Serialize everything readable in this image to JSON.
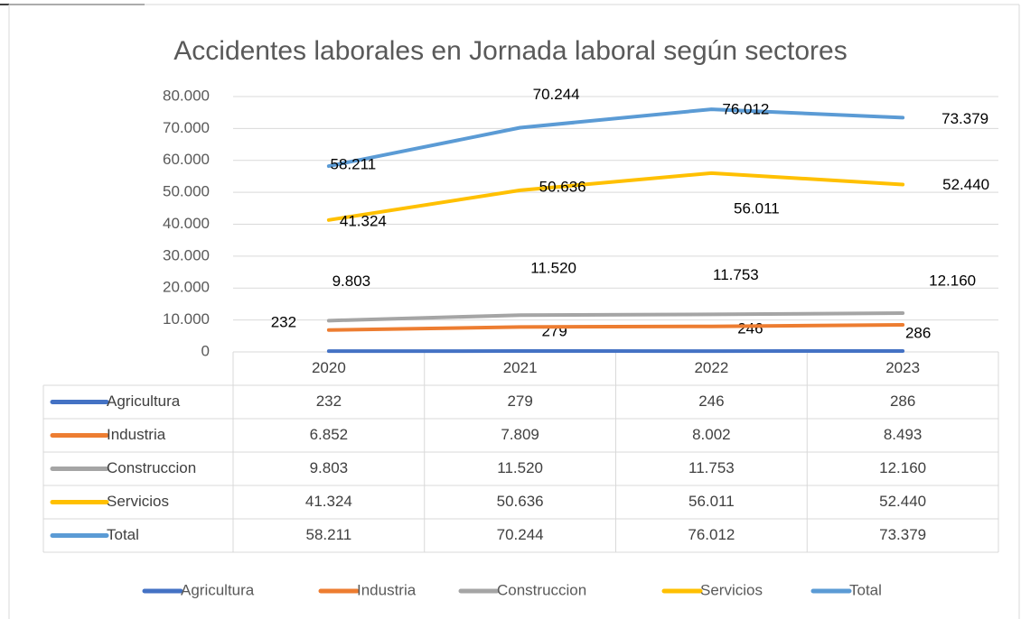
{
  "chart_data": {
    "type": "line",
    "title": "Accidentes laborales en Jornada laboral según sectores",
    "categories": [
      "2020",
      "2021",
      "2022",
      "2023"
    ],
    "series": [
      {
        "name": "Agricultura",
        "color": "#4472c4",
        "values": [
          232,
          279,
          246,
          286
        ],
        "value_labels": [
          "232",
          "279",
          "246",
          "286"
        ],
        "data_labels": true
      },
      {
        "name": "Industria",
        "color": "#ed7d31",
        "values": [
          6852,
          7809,
          8002,
          8493
        ],
        "value_labels": [
          "6.852",
          "7.809",
          "8.002",
          "8.493"
        ],
        "data_labels": false
      },
      {
        "name": "Construccion",
        "color": "#a5a5a5",
        "values": [
          9803,
          11520,
          11753,
          12160
        ],
        "value_labels": [
          "9.803",
          "11.520",
          "11.753",
          "12.160"
        ],
        "data_labels": true
      },
      {
        "name": "Servicios",
        "color": "#ffc000",
        "values": [
          41324,
          50636,
          56011,
          52440
        ],
        "value_labels": [
          "41.324",
          "50.636",
          "56.011",
          "52.440"
        ],
        "data_labels": true
      },
      {
        "name": "Total",
        "color": "#5b9bd5",
        "values": [
          58211,
          70244,
          76012,
          73379
        ],
        "value_labels": [
          "58.211",
          "70.244",
          "76.012",
          "73.379"
        ],
        "data_labels": true
      }
    ],
    "ylim": [
      0,
      80000
    ],
    "yticks": [
      0,
      {
        "value": 10000,
        "label": "10.000"
      },
      {
        "value": 20000,
        "label": "20.000"
      },
      {
        "value": 30000,
        "label": "30.000"
      },
      {
        "value": 40000,
        "label": "40.000"
      },
      {
        "value": 50000,
        "label": "50.000"
      },
      {
        "value": 60000,
        "label": "60.000"
      },
      {
        "value": 70000,
        "label": "70.000"
      },
      {
        "value": 80000,
        "label": "80.000"
      }
    ],
    "grid": true,
    "data_table": true,
    "legend": "bottom"
  }
}
